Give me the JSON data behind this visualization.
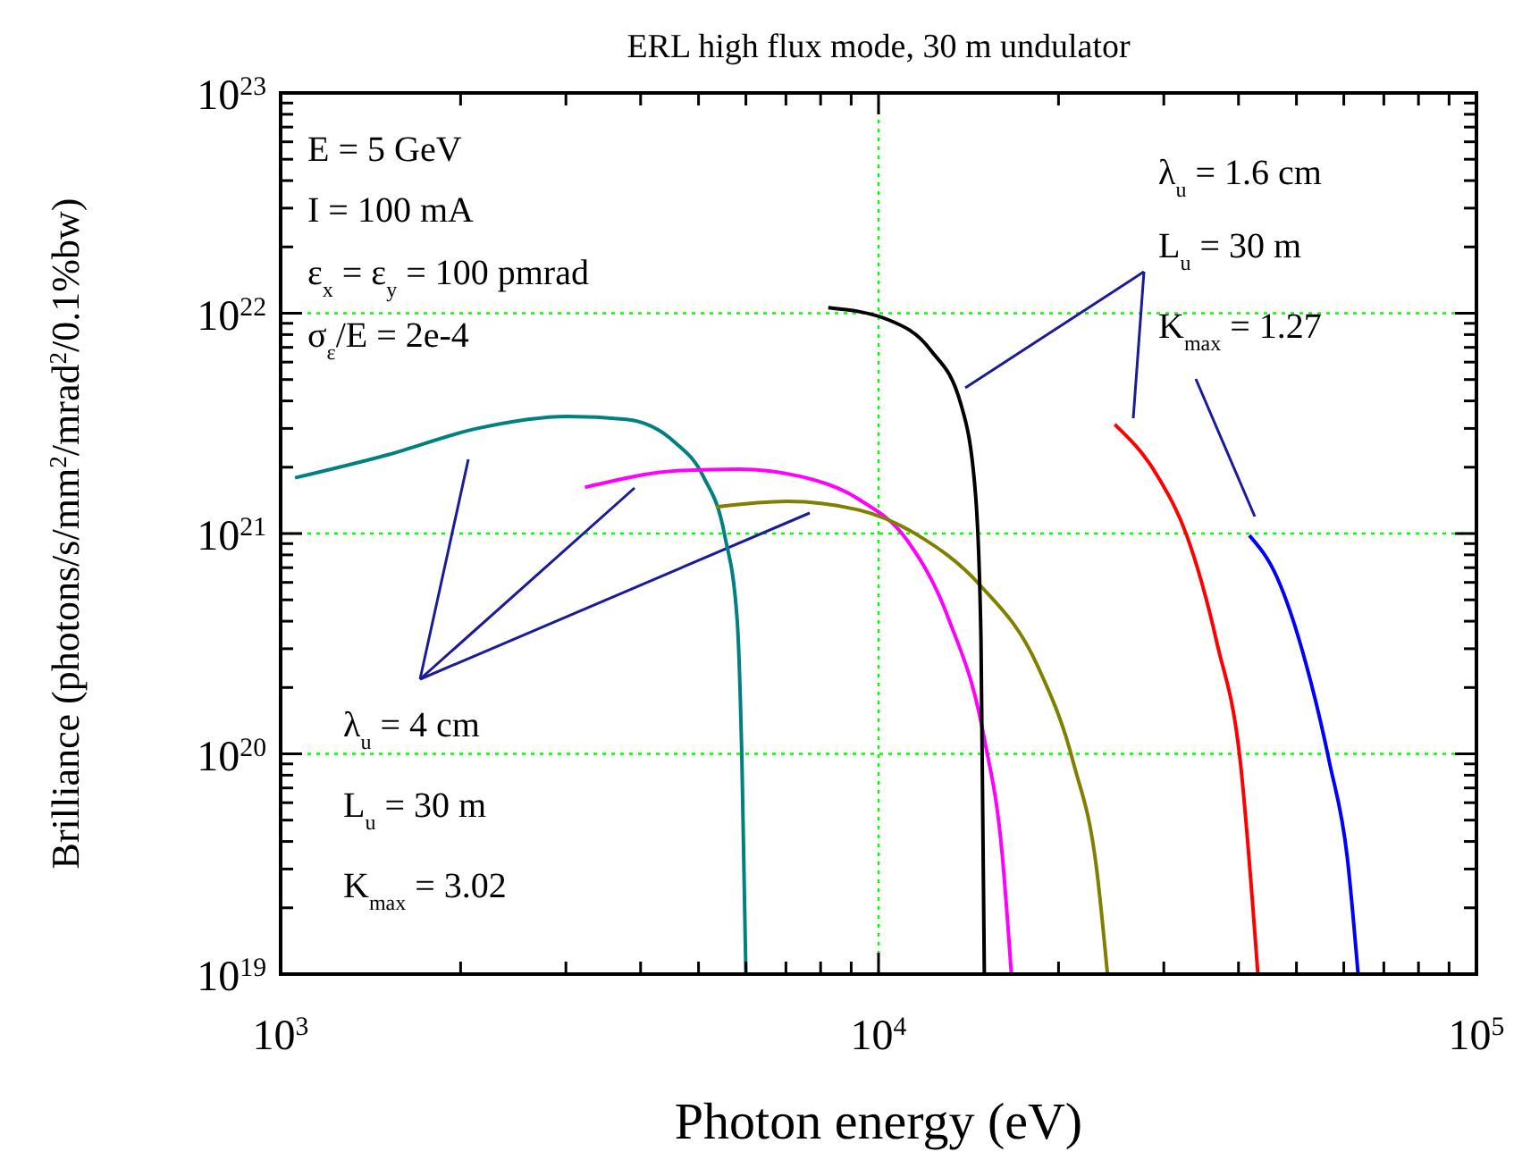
{
  "chart_data": {
    "type": "line",
    "title": "ERL high flux mode, 30 m undulator",
    "xlabel": "Photon energy (eV)",
    "ylabel": "Brilliance (photons/s/mm$^{2}$/mrad$^{2}$/0.1%bw)",
    "log": "xy",
    "grid": true,
    "xlim": [
      1000,
      100000
    ],
    "ylim": [
      1e+19,
      1e+23
    ],
    "xticks": [
      {
        "value": 1000,
        "label": "10$^{3}$"
      },
      {
        "value": 2000,
        "label": null
      },
      {
        "value": 3000,
        "label": null
      },
      {
        "value": 4000,
        "label": null
      },
      {
        "value": 5000,
        "label": null
      },
      {
        "value": 6000,
        "label": null
      },
      {
        "value": 7000,
        "label": null
      },
      {
        "value": 8000,
        "label": null
      },
      {
        "value": 9000,
        "label": null
      },
      {
        "value": 10000,
        "label": "10$^{4}$"
      },
      {
        "value": 20000,
        "label": null
      },
      {
        "value": 30000,
        "label": null
      },
      {
        "value": 40000,
        "label": null
      },
      {
        "value": 50000,
        "label": null
      },
      {
        "value": 60000,
        "label": null
      },
      {
        "value": 70000,
        "label": null
      },
      {
        "value": 80000,
        "label": null
      },
      {
        "value": 90000,
        "label": null
      },
      {
        "value": 100000,
        "label": "10$^{5}$"
      }
    ],
    "yticks": [
      {
        "value": 1e+19,
        "label": "10$^{19}$"
      },
      {
        "value": 2e+19,
        "label": null
      },
      {
        "value": 3e+19,
        "label": null
      },
      {
        "value": 4e+19,
        "label": null
      },
      {
        "value": 5e+19,
        "label": null
      },
      {
        "value": 6e+19,
        "label": null
      },
      {
        "value": 7e+19,
        "label": null
      },
      {
        "value": 8e+19,
        "label": null
      },
      {
        "value": 9e+19,
        "label": null
      },
      {
        "value": 1e+20,
        "label": "10$^{20}$"
      },
      {
        "value": 2e+20,
        "label": null
      },
      {
        "value": 3e+20,
        "label": null
      },
      {
        "value": 4e+20,
        "label": null
      },
      {
        "value": 5e+20,
        "label": null
      },
      {
        "value": 6e+20,
        "label": null
      },
      {
        "value": 7e+20,
        "label": null
      },
      {
        "value": 8e+20,
        "label": null
      },
      {
        "value": 9e+20,
        "label": null
      },
      {
        "value": 1e+21,
        "label": "10$^{21}$"
      },
      {
        "value": 2e+21,
        "label": null
      },
      {
        "value": 3e+21,
        "label": null
      },
      {
        "value": 4e+21,
        "label": null
      },
      {
        "value": 5e+21,
        "label": null
      },
      {
        "value": 6e+21,
        "label": null
      },
      {
        "value": 7e+21,
        "label": null
      },
      {
        "value": 8e+21,
        "label": null
      },
      {
        "value": 9e+21,
        "label": null
      },
      {
        "value": 1e+22,
        "label": "10$^{22}$"
      },
      {
        "value": 2e+22,
        "label": null
      },
      {
        "value": 3e+22,
        "label": null
      },
      {
        "value": 4e+22,
        "label": null
      },
      {
        "value": 5e+22,
        "label": null
      },
      {
        "value": 6e+22,
        "label": null
      },
      {
        "value": 7e+22,
        "label": null
      },
      {
        "value": 8e+22,
        "label": null
      },
      {
        "value": 9e+22,
        "label": null
      },
      {
        "value": 1e+23,
        "label": "10$^{23}$"
      }
    ],
    "annotations": [
      "E = 5 GeV",
      "I = 100 mA",
      "ε$_{x}$ = ε$_{y}$ = 100 pmrad",
      "σ$_{ε}$/E = 2e-4",
      "λ$_{u}$ = 1.6 cm",
      "L$_{u}$ = 30 m",
      "K$_{max}$ = 1.27",
      "λ$_{u}$ = 4 cm",
      "L$_{u}$ = 30 m",
      "K$_{max}$ = 3.02"
    ],
    "series": [
      {
        "color": "#008080",
        "x": [
          1057,
          1513,
          2133,
          3013,
          3785,
          4560,
          5090,
          5530,
          5800,
          5910,
          6000
        ],
        "values": [
          1.79e+21,
          2.28e+21,
          3e+21,
          3.4e+21,
          3.3e+21,
          2.6e+21,
          1.82e+21,
          9.8e+20,
          4.1e+20,
          9.1e+19,
          1e+19
        ]
      },
      {
        "color": "#ff00ff",
        "x": [
          3228,
          4660,
          5840,
          7380,
          9270,
          11170,
          13100,
          15030,
          16100,
          16680
        ],
        "values": [
          1.62e+21,
          1.93e+21,
          1.96e+21,
          1.82e+21,
          1.43e+21,
          9.3e+20,
          4.1e+20,
          1.17e+20,
          3.5e+19,
          1e+19
        ]
      },
      {
        "color": "#808000",
        "x": [
          5350,
          7030,
          9270,
          11650,
          14720,
          18460,
          21180,
          23180,
          24150
        ],
        "values": [
          1.32e+21,
          1.4e+21,
          1.28e+21,
          9.8e+20,
          5.9e+20,
          2.5e+20,
          9.1e+19,
          2.95e+19,
          1e+19
        ]
      },
      {
        "color": "#000000",
        "x": [
          8240,
          10420,
          12220,
          13740,
          14530,
          14840,
          15030
        ],
        "values": [
          1.06e+22,
          9.3e+21,
          6.8e+21,
          3.85e+21,
          1.5e+21,
          3.2e+20,
          1e+19
        ]
      },
      {
        "color": "#ff0000",
        "x": [
          24830,
          29300,
          32770,
          36800,
          40300,
          43100
        ],
        "values": [
          3.13e+21,
          1.82e+21,
          9.8e+20,
          3.2e+20,
          9.1e+19,
          1e+19
        ]
      },
      {
        "color": "#0000ff",
        "x": [
          41700,
          46300,
          52000,
          56800,
          60800,
          63400
        ],
        "values": [
          9.8e+20,
          6.4e+20,
          2.5e+20,
          9.1e+19,
          3.4e+19,
          1e+19
        ]
      }
    ]
  }
}
